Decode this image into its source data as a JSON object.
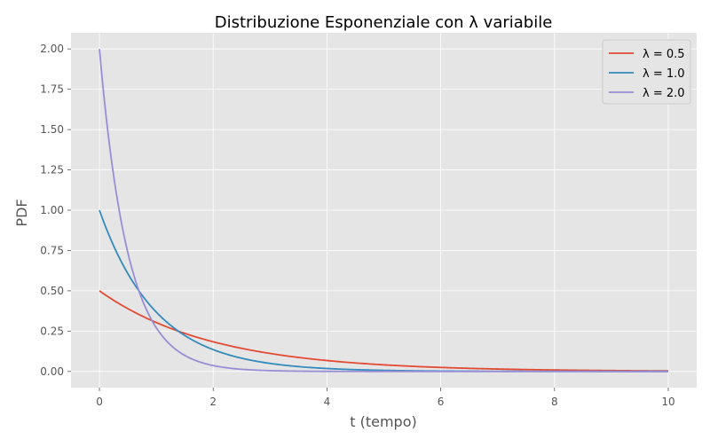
{
  "chart_data": {
    "type": "line",
    "title": "Distribuzione Esponenziale con λ variabile",
    "xlabel": "t (tempo)",
    "ylabel": "PDF",
    "xlim": [
      -0.5,
      10.5
    ],
    "ylim": [
      -0.1,
      2.1
    ],
    "xticks": [
      0,
      2,
      4,
      6,
      8,
      10
    ],
    "yticks": [
      0.0,
      0.25,
      0.5,
      0.75,
      1.0,
      1.25,
      1.5,
      1.75,
      2.0
    ],
    "xtick_labels": [
      "0",
      "2",
      "4",
      "6",
      "8",
      "10"
    ],
    "ytick_labels": [
      "0.00",
      "0.25",
      "0.50",
      "0.75",
      "1.00",
      "1.25",
      "1.50",
      "1.75",
      "2.00"
    ],
    "grid": true,
    "legend_position": "top-right",
    "series": [
      {
        "name": "λ = 0.5",
        "lambda": 0.5,
        "color": "#E24A33",
        "x": [
          0,
          0.5,
          1,
          1.5,
          2,
          3,
          4,
          5,
          6,
          7,
          8,
          9,
          10
        ],
        "y": [
          0.5,
          0.389,
          0.303,
          0.236,
          0.184,
          0.112,
          0.068,
          0.041,
          0.025,
          0.015,
          0.009,
          0.006,
          0.003
        ]
      },
      {
        "name": "λ = 1.0",
        "lambda": 1.0,
        "color": "#348ABD",
        "x": [
          0,
          0.5,
          1,
          1.5,
          2,
          3,
          4,
          5,
          6,
          7,
          8,
          9,
          10
        ],
        "y": [
          1.0,
          0.607,
          0.368,
          0.223,
          0.135,
          0.05,
          0.018,
          0.007,
          0.002,
          0.001,
          0.0003,
          0.0001,
          5e-05
        ]
      },
      {
        "name": "λ = 2.0",
        "lambda": 2.0,
        "color": "#988ED5",
        "x": [
          0,
          0.25,
          0.5,
          0.75,
          1,
          1.5,
          2,
          3,
          4,
          5,
          6,
          7,
          8,
          9,
          10
        ],
        "y": [
          2.0,
          1.213,
          0.736,
          0.446,
          0.271,
          0.1,
          0.037,
          0.005,
          0.0007,
          9e-05,
          1e-05,
          0.0,
          0.0,
          0.0,
          0.0
        ]
      }
    ]
  },
  "colors": {
    "plot_background": "#E5E5E5",
    "grid": "#FFFFFF",
    "text": "#000000",
    "tick_text": "#555555"
  }
}
